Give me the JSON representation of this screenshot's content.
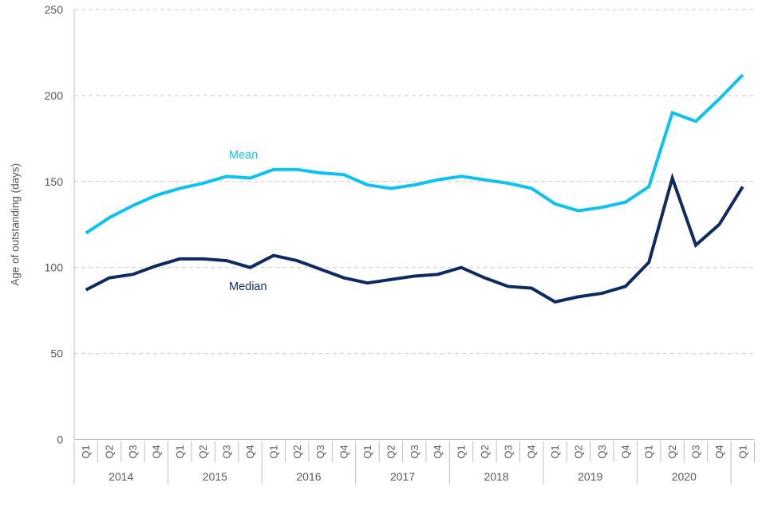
{
  "chart_data": {
    "type": "line",
    "title": "",
    "ylabel": "Age of outstanding (days)",
    "xlabel": "",
    "ylim": [
      0,
      250
    ],
    "yticks": [
      0,
      50,
      100,
      150,
      200,
      250
    ],
    "grid": "horizontal-dashed",
    "legend": "inline-labels-on-chart",
    "x_quarters": [
      "Q1",
      "Q2",
      "Q3",
      "Q4",
      "Q1",
      "Q2",
      "Q3",
      "Q4",
      "Q1",
      "Q2",
      "Q3",
      "Q4",
      "Q1",
      "Q2",
      "Q3",
      "Q4",
      "Q1",
      "Q2",
      "Q3",
      "Q4",
      "Q1",
      "Q2",
      "Q3",
      "Q4",
      "Q1",
      "Q2",
      "Q3",
      "Q4",
      "Q1"
    ],
    "x_years": [
      "2014",
      "2015",
      "2016",
      "2017",
      "2018",
      "2019",
      "2020"
    ],
    "quarters_per_year": 4,
    "series": [
      {
        "name": "Mean",
        "color": "#0ec2ef",
        "values": [
          120,
          129,
          136,
          142,
          146,
          149,
          153,
          152,
          157,
          157,
          155,
          154,
          148,
          146,
          148,
          151,
          153,
          151,
          149,
          146,
          137,
          133,
          135,
          138,
          147,
          190,
          185,
          198,
          212
        ]
      },
      {
        "name": "Median",
        "color": "#0e2a5e",
        "values": [
          87,
          94,
          96,
          101,
          105,
          105,
          104,
          100,
          107,
          104,
          99,
          94,
          91,
          93,
          95,
          96,
          100,
          94,
          89,
          88,
          80,
          83,
          85,
          89,
          103,
          152,
          113,
          125,
          147
        ]
      }
    ]
  },
  "annotations": {
    "mean_label": "Mean",
    "median_label": "Median"
  },
  "colors": {
    "mean_line": "#0ec2ef",
    "median_line": "#0e2a5e",
    "gridline": "#c9c9c9",
    "axis_line": "#bfbfbf",
    "axis_text": "#595959",
    "background": "#ffffff"
  }
}
